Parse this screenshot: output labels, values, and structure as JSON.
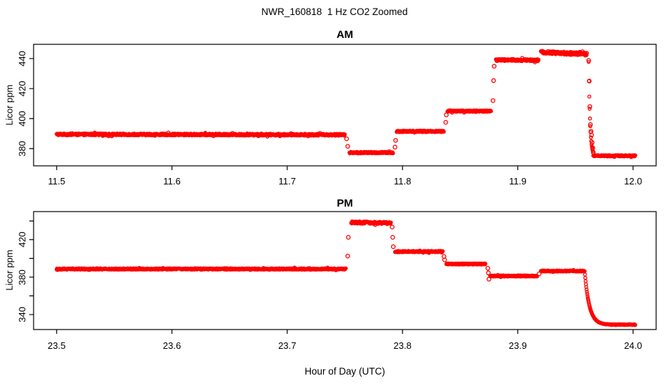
{
  "page": {
    "background": "#ffffff",
    "text_color": "#000000"
  },
  "chart_data": {
    "type": "scatter",
    "title": "NWR_160818  1 Hz CO2 Zoomed",
    "xlabel": "Hour of Day (UTC)",
    "point_color": "#ff0000",
    "point_style": "open-circle",
    "grid": false,
    "legend": null,
    "panels": [
      {
        "id": "am",
        "title": "AM",
        "ylabel": "Licor ppm",
        "xlim": [
          11.48,
          12.02
        ],
        "ylim": [
          368.5,
          449.5
        ],
        "xticks": [
          {
            "v": 11.5,
            "label": "11.5"
          },
          {
            "v": 11.6,
            "label": "11.6"
          },
          {
            "v": 11.7,
            "label": "11.7"
          },
          {
            "v": 11.8,
            "label": "11.8"
          },
          {
            "v": 11.9,
            "label": "11.9"
          },
          {
            "v": 12.0,
            "label": "12.0"
          }
        ],
        "yticks": [
          {
            "v": 380,
            "label": "380"
          },
          {
            "v": 400,
            "label": "400"
          },
          {
            "v": 420,
            "label": "420"
          },
          {
            "v": 440,
            "label": "440"
          }
        ],
        "segments": [
          {
            "type": "flat",
            "t0": 11.5,
            "t1": 11.75,
            "v": 389.5,
            "v_end": 389.2,
            "noise": 0.6
          },
          {
            "type": "flat",
            "t0": 11.754,
            "t1": 11.792,
            "v": 377.3,
            "noise": 0.5
          },
          {
            "type": "flat",
            "t0": 11.795,
            "t1": 11.836,
            "v": 391.5,
            "noise": 0.5
          },
          {
            "type": "flat",
            "t0": 11.839,
            "t1": 11.877,
            "v": 405.0,
            "noise": 0.5
          },
          {
            "type": "flat",
            "t0": 11.881,
            "t1": 11.918,
            "v": 439.0,
            "noise": 0.7
          },
          {
            "type": "flat",
            "t0": 11.92,
            "t1": 11.96,
            "v": 444.2,
            "v_end": 443.0,
            "noise": 1.0
          },
          {
            "type": "decay",
            "t0": 11.9615,
            "t1": 11.9655,
            "from": 438.0,
            "to": 375.2,
            "tau": 0.0012
          },
          {
            "type": "flat",
            "t0": 11.9655,
            "t1": 12.002,
            "v": 375.2,
            "noise": 0.4
          }
        ],
        "outliers": [
          {
            "t": 11.7515,
            "v": 386.5
          },
          {
            "t": 11.7525,
            "v": 381.5
          },
          {
            "t": 11.7935,
            "v": 381.0
          },
          {
            "t": 11.794,
            "v": 385.5
          },
          {
            "t": 11.8375,
            "v": 397.5
          },
          {
            "t": 11.838,
            "v": 402.5
          },
          {
            "t": 11.8785,
            "v": 412.0
          },
          {
            "t": 11.879,
            "v": 425.3
          },
          {
            "t": 11.8795,
            "v": 434.9
          },
          {
            "t": 11.9615,
            "v": 438.8
          },
          {
            "t": 11.962,
            "v": 425.0
          },
          {
            "t": 11.9625,
            "v": 408.0
          },
          {
            "t": 11.963,
            "v": 396.0
          },
          {
            "t": 11.9635,
            "v": 391.5
          },
          {
            "t": 11.964,
            "v": 389.0
          },
          {
            "t": 11.9645,
            "v": 384.0
          },
          {
            "t": 11.965,
            "v": 380.5
          },
          {
            "t": 11.9655,
            "v": 377.5
          }
        ]
      },
      {
        "id": "pm",
        "title": "PM",
        "ylabel": "Licor ppm",
        "xlim": [
          23.48,
          24.02
        ],
        "ylim": [
          324.0,
          450.0
        ],
        "xticks": [
          {
            "v": 23.5,
            "label": "23.5"
          },
          {
            "v": 23.6,
            "label": "23.6"
          },
          {
            "v": 23.7,
            "label": "23.7"
          },
          {
            "v": 23.8,
            "label": "23.8"
          },
          {
            "v": 23.9,
            "label": "23.9"
          },
          {
            "v": 24.0,
            "label": "24.0"
          }
        ],
        "yticks": [
          {
            "v": 340,
            "label": "340"
          },
          {
            "v": 360,
            "label": ""
          },
          {
            "v": 380,
            "label": "380"
          },
          {
            "v": 400,
            "label": ""
          },
          {
            "v": 420,
            "label": "420"
          },
          {
            "v": 440,
            "label": ""
          }
        ],
        "segments": [
          {
            "type": "flat",
            "t0": 23.5,
            "t1": 23.751,
            "v": 388.7,
            "noise": 0.7
          },
          {
            "type": "flat",
            "t0": 23.7555,
            "t1": 23.79,
            "v": 438.5,
            "v_end": 437.8,
            "noise": 1.2
          },
          {
            "type": "flat",
            "t0": 23.7935,
            "t1": 23.835,
            "v": 407.3,
            "noise": 0.7
          },
          {
            "type": "flat",
            "t0": 23.838,
            "t1": 23.872,
            "v": 394.0,
            "noise": 0.6
          },
          {
            "type": "flat",
            "t0": 23.876,
            "t1": 23.917,
            "v": 381.2,
            "noise": 0.6
          },
          {
            "type": "flat",
            "t0": 23.92,
            "t1": 23.9575,
            "v": 386.5,
            "noise": 0.6
          },
          {
            "type": "decay",
            "t0": 23.958,
            "t1": 23.981,
            "from": 386.5,
            "to": 329.2,
            "tau": 0.004
          },
          {
            "type": "flat",
            "t0": 23.981,
            "t1": 24.002,
            "v": 329.2,
            "noise": 0.35
          }
        ],
        "outliers": [
          {
            "t": 23.7525,
            "v": 402.5
          },
          {
            "t": 23.753,
            "v": 422.5
          },
          {
            "t": 23.791,
            "v": 433.5
          },
          {
            "t": 23.7915,
            "v": 422.5
          },
          {
            "t": 23.792,
            "v": 412.5
          },
          {
            "t": 23.836,
            "v": 402.0
          },
          {
            "t": 23.8365,
            "v": 398.5
          },
          {
            "t": 23.874,
            "v": 389.5
          },
          {
            "t": 23.8745,
            "v": 384.5
          },
          {
            "t": 23.875,
            "v": 377.8
          },
          {
            "t": 23.9185,
            "v": 383.5
          }
        ]
      }
    ]
  }
}
